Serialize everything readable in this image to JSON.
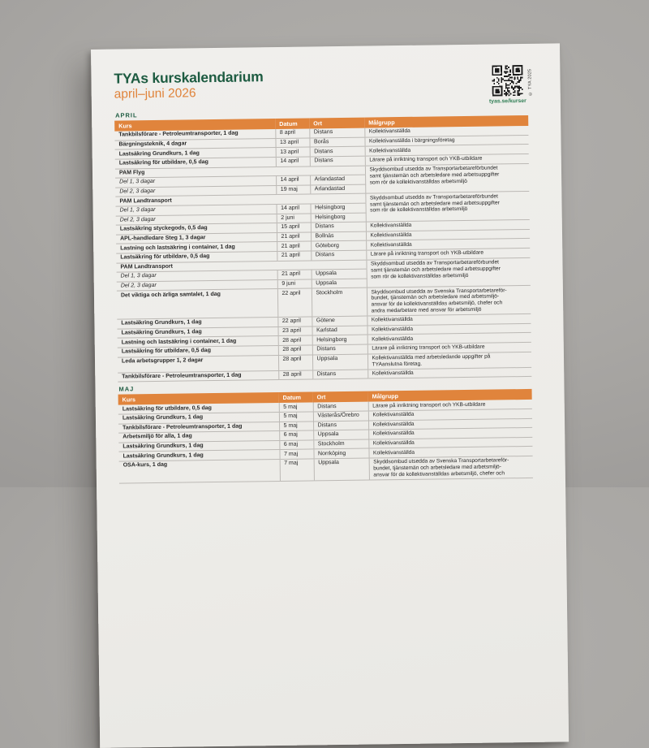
{
  "colors": {
    "orange": "#E0843C",
    "dark_green": "#1D5B41",
    "link_green": "#2E7D54",
    "ink": "#262626",
    "row_line": "#BCB9B5"
  },
  "header": {
    "title": "TYAs kurskalendarium",
    "subtitle": "april–juni 2026",
    "qr_link": "tyas.se/kurser",
    "copyright": "© TYA 2025",
    "qr_icon": "qr-code"
  },
  "table": {
    "columns": [
      "Kurs",
      "Datum",
      "Ort",
      "Målgrupp"
    ]
  },
  "sections": [
    {
      "label": "APRIL",
      "rows": [
        {
          "kurs": "Tankbilsförare - Petroleumtransporter, 1 dag",
          "datum": "8 april",
          "ort": "Distans",
          "malgrupp": "Kollektivanställda"
        },
        {
          "kurs": "Bärgningsteknik, 4 dagar",
          "datum": "13 april",
          "ort": "Borås",
          "malgrupp": "Kollektivanställda i bärgningsföretag"
        },
        {
          "kurs": "Lastsäkring Grundkurs, 1 dag",
          "datum": "13 april",
          "ort": "Distans",
          "malgrupp": "Kollektivanställda"
        },
        {
          "kurs": "Lastsäkring för utbildare, 0,5 dag",
          "datum": "14 april",
          "ort": "Distans",
          "malgrupp": "Lärare på inriktning transport och YKB-utbildare"
        },
        {
          "kurs": "PAM Flyg",
          "malgrupp": "Skyddsombud utsedda av Transportarbetareförbundet\nsamt tjänstemän och arbetsledare med arbetsuppgifter\nsom rör de kollektivanställdas arbetsmiljö",
          "parts": [
            {
              "kurs": "Del 1, 3 dagar",
              "datum": "14 april",
              "ort": "Arlandastad"
            },
            {
              "kurs": "Del 2, 3 dagar",
              "datum": "19 maj",
              "ort": "Arlandastad"
            }
          ]
        },
        {
          "kurs": "PAM Landtransport",
          "malgrupp": "Skyddsombud utsedda av Transportarbetareförbundet\nsamt tjänstemän och arbetsledare med arbetsuppgifter\nsom rör de kollektivanställdas arbetsmiljö",
          "parts": [
            {
              "kurs": "Del 1, 3 dagar",
              "datum": "14 april",
              "ort": "Helsingborg"
            },
            {
              "kurs": "Del 2, 3 dagar",
              "datum": "2 juni",
              "ort": "Helsingborg"
            }
          ]
        },
        {
          "kurs": "Lastsäkring styckegods, 0,5 dag",
          "datum": "15 april",
          "ort": "Distans",
          "malgrupp": "Kollektivanställda"
        },
        {
          "kurs": "APL-handledare Steg 1, 3 dagar",
          "datum": "21 april",
          "ort": "Bollnäs",
          "malgrupp": "Kollektivanställda"
        },
        {
          "kurs": "Lastning och lastsäkring i container, 1 dag",
          "datum": "21 april",
          "ort": "Göteborg",
          "malgrupp": "Kollektivanställda"
        },
        {
          "kurs": "Lastsäkring för utbildare, 0,5 dag",
          "datum": "21 april",
          "ort": "Distans",
          "malgrupp": "Lärare på inriktning transport och YKB-utbildare"
        },
        {
          "kurs": "PAM Landtransport",
          "malgrupp": "Skyddsombud utsedda av Transportarbetareförbundet\nsamt tjänstemän och arbetsledare med arbetsuppgifter\nsom rör de kollektivanställdas arbetsmiljö",
          "parts": [
            {
              "kurs": "Del 1, 3 dagar",
              "datum": "21 april",
              "ort": "Uppsala"
            },
            {
              "kurs": "Del 2, 3 dagar",
              "datum": "9 juni",
              "ort": "Uppsala"
            }
          ]
        },
        {
          "kurs": "Det viktiga och ärliga samtalet, 1 dag",
          "datum": "22 april",
          "ort": "Stockholm",
          "malgrupp": "Skyddsombud utsedda av Svenska Transportarbetareför-\nbundet, tjänstemän och arbetsledare med arbetsmiljö-\nansvar för de kollektivanställdas arbetsmiljö, chefer och\nandra medarbetare med ansvar för arbetsmiljö"
        },
        {
          "kurs": "Lastsäkring Grundkurs, 1 dag",
          "datum": "22 april",
          "ort": "Götene",
          "malgrupp": "Kollektivanställda"
        },
        {
          "kurs": "Lastsäkring Grundkurs, 1 dag",
          "datum": "23 april",
          "ort": "Karlstad",
          "malgrupp": "Kollektivanställda"
        },
        {
          "kurs": "Lastning och lastsäkring i container, 1 dag",
          "datum": "28 april",
          "ort": "Helsingborg",
          "malgrupp": "Kollektivanställda"
        },
        {
          "kurs": "Lastsäkring för utbildare, 0,5 dag",
          "datum": "28 april",
          "ort": "Distans",
          "malgrupp": "Lärare på inriktning transport och YKB-utbildare"
        },
        {
          "kurs": "Leda arbetsgrupper 1, 2 dagar",
          "datum": "28 april",
          "ort": "Uppsala",
          "malgrupp": "Kollektivanställda med arbetsledande uppgifter på\nTYAanslutna företag."
        },
        {
          "kurs": "Tankbilsförare - Petroleumtransporter, 1 dag",
          "datum": "28 april",
          "ort": "Distans",
          "malgrupp": "Kollektivanställda"
        }
      ]
    },
    {
      "label": "MAJ",
      "rows": [
        {
          "kurs": "Lastsäkring för utbildare, 0,5 dag",
          "datum": "5 maj",
          "ort": "Distans",
          "malgrupp": "Lärare på inriktning transport och YKB-utbildare"
        },
        {
          "kurs": "Lastsäkring Grundkurs, 1 dag",
          "datum": "5 maj",
          "ort": "Västerås/Örebro",
          "malgrupp": "Kollektivanställda"
        },
        {
          "kurs": "Tankbilsförare - Petroleumtransporter, 1 dag",
          "datum": "5 maj",
          "ort": "Distans",
          "malgrupp": "Kollektivanställda"
        },
        {
          "kurs": "Arbetsmiljö för alla, 1 dag",
          "datum": "6 maj",
          "ort": "Uppsala",
          "malgrupp": "Kollektivanställda"
        },
        {
          "kurs": "Lastsäkring Grundkurs, 1 dag",
          "datum": "6 maj",
          "ort": "Stockholm",
          "malgrupp": "Kollektivanställda"
        },
        {
          "kurs": "Lastsäkring Grundkurs, 1 dag",
          "datum": "7 maj",
          "ort": "Norrköping",
          "malgrupp": "Kollektivanställda"
        },
        {
          "kurs": "OSA-kurs, 1 dag",
          "datum": "7 maj",
          "ort": "Uppsala",
          "malgrupp": "Skyddsombud utsedda av Svenska Transportarbetareför-\nbundet, tjänstemän och arbetsledare med arbetsmiljö-\nansvar för de kollektivanställdas arbetsmiljö, chefer och"
        }
      ]
    }
  ]
}
